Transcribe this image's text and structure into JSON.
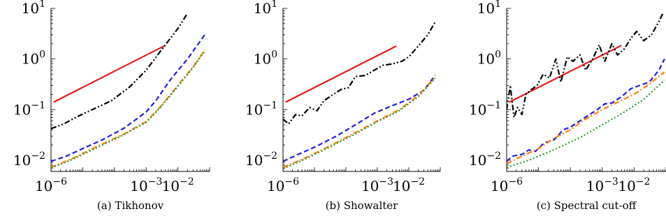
{
  "chart_data": [
    {
      "type": "line",
      "panel": "a",
      "caption": "(a) Tikhonov",
      "x_scale": "log",
      "y_scale": "log",
      "xlim": [
        1e-06,
        0.1
      ],
      "ylim": [
        0.006,
        10
      ],
      "x_ticks": [
        {
          "label": "10",
          "exp": "−6",
          "value": 1e-06
        },
        {
          "label": "10",
          "exp": "−3",
          "value": 0.001
        },
        {
          "label": "10",
          "exp": "−2",
          "value": 0.01
        }
      ],
      "y_ticks": [
        {
          "label": "10",
          "exp": "−2",
          "value": 0.01
        },
        {
          "label": "10",
          "exp": "−1",
          "value": 0.1
        },
        {
          "label": "10",
          "exp": "0",
          "value": 1
        },
        {
          "label": "10",
          "exp": "1",
          "value": 10
        }
      ],
      "series": [
        {
          "color": "#e41a1c",
          "dash": "solid",
          "points": [
            [
              1.2e-06,
              0.14
            ],
            [
              0.004,
              1.85
            ]
          ]
        },
        {
          "color": "#000000",
          "dash": "dashdotdot",
          "points": [
            [
              1e-06,
              0.042
            ],
            [
              2.5e-06,
              0.052
            ],
            [
              6e-06,
              0.07
            ],
            [
              2e-05,
              0.1
            ],
            [
              8e-05,
              0.15
            ],
            [
              0.0003,
              0.28
            ],
            [
              0.001,
              0.6
            ],
            [
              0.003,
              1.5
            ],
            [
              0.01,
              4
            ],
            [
              0.02,
              8
            ]
          ]
        },
        {
          "color": "#1f1fdd",
          "dash": "dashed",
          "points": [
            [
              1e-06,
              0.0095
            ],
            [
              3e-06,
              0.012
            ],
            [
              1e-05,
              0.017
            ],
            [
              4e-05,
              0.025
            ],
            [
              0.0002,
              0.043
            ],
            [
              0.001,
              0.09
            ],
            [
              0.002,
              0.15
            ],
            [
              0.006,
              0.4
            ],
            [
              0.02,
              1.0
            ],
            [
              0.07,
              3.0
            ]
          ]
        },
        {
          "color": "#ff7f0e",
          "dash": "dashdot",
          "points": [
            [
              1e-06,
              0.0072
            ],
            [
              5e-06,
              0.011
            ],
            [
              3e-05,
              0.019
            ],
            [
              0.0002,
              0.033
            ],
            [
              0.001,
              0.058
            ],
            [
              0.003,
              0.12
            ],
            [
              0.01,
              0.3
            ],
            [
              0.03,
              0.7
            ],
            [
              0.07,
              1.5
            ]
          ]
        },
        {
          "color": "#2a9a2a",
          "dash": "dotted",
          "points": [
            [
              1e-06,
              0.007
            ],
            [
              5e-06,
              0.0105
            ],
            [
              3e-05,
              0.018
            ],
            [
              0.0002,
              0.032
            ],
            [
              0.001,
              0.056
            ],
            [
              0.003,
              0.115
            ],
            [
              0.01,
              0.29
            ],
            [
              0.03,
              0.68
            ],
            [
              0.07,
              1.45
            ]
          ]
        }
      ]
    },
    {
      "type": "line",
      "panel": "b",
      "caption": "(b) Showalter",
      "x_scale": "log",
      "y_scale": "log",
      "xlim": [
        1e-06,
        0.1
      ],
      "ylim": [
        0.006,
        10
      ],
      "x_ticks": [
        {
          "label": "10",
          "exp": "−6",
          "value": 1e-06
        },
        {
          "label": "10",
          "exp": "−3",
          "value": 0.001
        },
        {
          "label": "10",
          "exp": "−2",
          "value": 0.01
        }
      ],
      "y_ticks": [
        {
          "label": "10",
          "exp": "−2",
          "value": 0.01
        },
        {
          "label": "10",
          "exp": "−1",
          "value": 0.1
        },
        {
          "label": "10",
          "exp": "0",
          "value": 1
        },
        {
          "label": "10",
          "exp": "1",
          "value": 10
        }
      ],
      "series": [
        {
          "color": "#e41a1c",
          "dash": "solid",
          "points": [
            [
              1.2e-06,
              0.14
            ],
            [
              0.004,
              1.8
            ]
          ]
        },
        {
          "color": "#000000",
          "dash": "dashdotdot",
          "points": [
            [
              1e-06,
              0.065
            ],
            [
              1.5e-06,
              0.052
            ],
            [
              2.5e-06,
              0.08
            ],
            [
              4e-06,
              0.075
            ],
            [
              7e-06,
              0.11
            ],
            [
              1.2e-05,
              0.095
            ],
            [
              2e-05,
              0.15
            ],
            [
              4e-05,
              0.2
            ],
            [
              7e-05,
              0.25
            ],
            [
              0.00012,
              0.27
            ],
            [
              0.0002,
              0.45
            ],
            [
              0.0004,
              0.47
            ],
            [
              0.0008,
              0.6
            ],
            [
              0.0015,
              0.75
            ],
            [
              0.003,
              0.8
            ],
            [
              0.006,
              0.9
            ],
            [
              0.01,
              1.1
            ],
            [
              0.02,
              1.8
            ],
            [
              0.04,
              3.0
            ],
            [
              0.07,
              5.5
            ]
          ]
        },
        {
          "color": "#1f1fdd",
          "dash": "dashed",
          "points": [
            [
              1e-06,
              0.0095
            ],
            [
              3e-06,
              0.013
            ],
            [
              1e-05,
              0.018
            ],
            [
              5e-05,
              0.03
            ],
            [
              0.0002,
              0.05
            ],
            [
              0.0008,
              0.085
            ],
            [
              0.003,
              0.12
            ],
            [
              0.01,
              0.16
            ],
            [
              0.03,
              0.24
            ],
            [
              0.07,
              0.48
            ]
          ]
        },
        {
          "color": "#ff7f0e",
          "dash": "dashdot",
          "points": [
            [
              1e-06,
              0.0072
            ],
            [
              5e-06,
              0.011
            ],
            [
              3e-05,
              0.019
            ],
            [
              0.0002,
              0.035
            ],
            [
              0.001,
              0.06
            ],
            [
              0.005,
              0.1
            ],
            [
              0.02,
              0.19
            ],
            [
              0.07,
              0.44
            ]
          ]
        },
        {
          "color": "#2a9a2a",
          "dash": "dotted",
          "points": [
            [
              1e-06,
              0.0068
            ],
            [
              5e-06,
              0.0105
            ],
            [
              3e-05,
              0.018
            ],
            [
              0.0002,
              0.033
            ],
            [
              0.001,
              0.058
            ],
            [
              0.005,
              0.095
            ],
            [
              0.02,
              0.18
            ],
            [
              0.07,
              0.42
            ]
          ]
        }
      ]
    },
    {
      "type": "line",
      "panel": "c",
      "caption": "(c) Spectral cut-off",
      "x_scale": "log",
      "y_scale": "log",
      "xlim": [
        1e-06,
        0.1
      ],
      "ylim": [
        0.006,
        10
      ],
      "x_ticks": [
        {
          "label": "10",
          "exp": "−6",
          "value": 1e-06
        },
        {
          "label": "10",
          "exp": "−3",
          "value": 0.001
        },
        {
          "label": "10",
          "exp": "−2",
          "value": 0.01
        }
      ],
      "y_ticks": [
        {
          "label": "10",
          "exp": "−2",
          "value": 0.01
        },
        {
          "label": "10",
          "exp": "−1",
          "value": 0.1
        },
        {
          "label": "10",
          "exp": "0",
          "value": 1
        },
        {
          "label": "10",
          "exp": "1",
          "value": 10
        }
      ],
      "series": [
        {
          "color": "#e41a1c",
          "dash": "solid",
          "points": [
            [
              1.2e-06,
              0.14
            ],
            [
              0.004,
              1.85
            ]
          ]
        },
        {
          "color": "#000000",
          "dash": "dashdotdot",
          "points": [
            [
              1e-06,
              0.1
            ],
            [
              1.3e-06,
              0.3
            ],
            [
              1.7e-06,
              0.07
            ],
            [
              2.2e-06,
              0.11
            ],
            [
              3e-06,
              0.08
            ],
            [
              4e-06,
              0.2
            ],
            [
              6e-06,
              0.25
            ],
            [
              9e-06,
              0.3
            ],
            [
              1.4e-05,
              0.5
            ],
            [
              2.2e-05,
              0.42
            ],
            [
              3.5e-05,
              1.0
            ],
            [
              5e-05,
              0.35
            ],
            [
              8e-05,
              1.1
            ],
            [
              0.00012,
              0.9
            ],
            [
              0.0002,
              1.2
            ],
            [
              0.0003,
              0.6
            ],
            [
              0.0005,
              1.0
            ],
            [
              0.0008,
              1.9
            ],
            [
              0.0012,
              0.9
            ],
            [
              0.002,
              2.0
            ],
            [
              0.003,
              1.2
            ],
            [
              0.005,
              1.6
            ],
            [
              0.008,
              2.6
            ],
            [
              0.012,
              3.5
            ],
            [
              0.02,
              2.3
            ],
            [
              0.035,
              3.0
            ],
            [
              0.06,
              5.5
            ],
            [
              0.08,
              8.0
            ]
          ]
        },
        {
          "color": "#1f1fdd",
          "dash": "dashed",
          "points": [
            [
              1e-06,
              0.0095
            ],
            [
              1.5e-06,
              0.012
            ],
            [
              3e-06,
              0.013
            ],
            [
              5e-06,
              0.016
            ],
            [
              8e-06,
              0.015
            ],
            [
              1.5e-05,
              0.022
            ],
            [
              3e-05,
              0.025
            ],
            [
              6e-05,
              0.04
            ],
            [
              0.0001,
              0.045
            ],
            [
              0.0002,
              0.06
            ],
            [
              0.0004,
              0.08
            ],
            [
              0.0007,
              0.1
            ],
            [
              0.0012,
              0.13
            ],
            [
              0.002,
              0.135
            ],
            [
              0.004,
              0.18
            ],
            [
              0.008,
              0.26
            ],
            [
              0.015,
              0.3
            ],
            [
              0.03,
              0.35
            ],
            [
              0.06,
              0.6
            ],
            [
              0.09,
              1.0
            ]
          ]
        },
        {
          "color": "#ff7f0e",
          "dash": "dashdot",
          "points": [
            [
              1e-06,
              0.0085
            ],
            [
              3e-06,
              0.012
            ],
            [
              1e-05,
              0.017
            ],
            [
              3e-05,
              0.027
            ],
            [
              0.0001,
              0.04
            ],
            [
              0.0003,
              0.065
            ],
            [
              0.001,
              0.1
            ],
            [
              0.003,
              0.14
            ],
            [
              0.01,
              0.2
            ],
            [
              0.03,
              0.32
            ],
            [
              0.09,
              0.55
            ]
          ]
        },
        {
          "color": "#2a9a2a",
          "dash": "dotted",
          "points": [
            [
              1e-06,
              0.0072
            ],
            [
              5e-06,
              0.01
            ],
            [
              3e-05,
              0.016
            ],
            [
              0.0002,
              0.028
            ],
            [
              0.001,
              0.05
            ],
            [
              0.005,
              0.09
            ],
            [
              0.02,
              0.16
            ],
            [
              0.09,
              0.38
            ]
          ]
        }
      ]
    }
  ]
}
